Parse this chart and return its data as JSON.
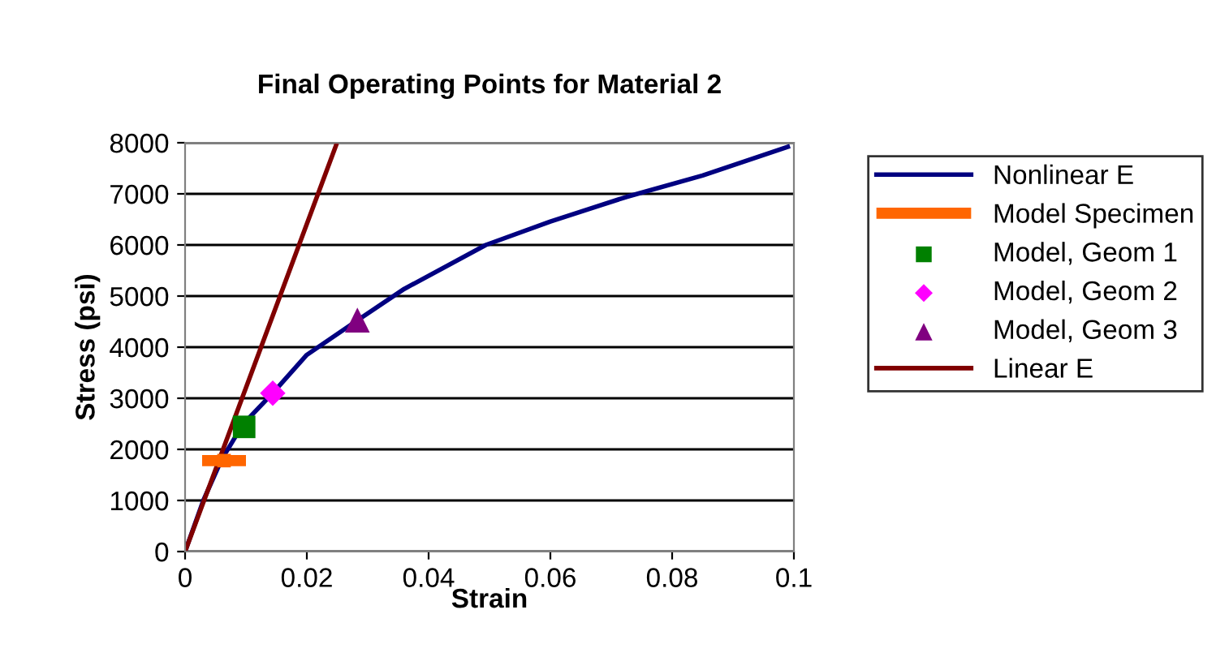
{
  "chart_data": {
    "type": "line",
    "title": "Final Operating Points for Material 2",
    "xlabel": "Strain",
    "ylabel": "Stress (psi)",
    "xlim": [
      0,
      0.1
    ],
    "xticks": [
      0,
      0.02,
      0.04,
      0.06,
      0.08,
      0.1
    ],
    "ylim": [
      0,
      8000
    ],
    "yticks": [
      0,
      1000,
      2000,
      3000,
      4000,
      5000,
      6000,
      7000,
      8000
    ],
    "grid": "y",
    "legend": "right",
    "series": [
      {
        "name": "Nonlinear E",
        "color": "#000080",
        "marker": "none",
        "x": [
          0,
          0.003,
          0.006,
          0.0095,
          0.0144,
          0.02,
          0.028,
          0.036,
          0.0494,
          0.06,
          0.0725,
          0.085,
          0.099
        ],
        "values": [
          0,
          1000,
          1800,
          2490,
          3100,
          3850,
          4500,
          5140,
          6000,
          6460,
          6940,
          7360,
          7920
        ]
      },
      {
        "name": "Model Specimen",
        "type": "scatter",
        "color": "#ff6600",
        "marker": "square",
        "x": [
          0.0064
        ],
        "values": [
          1780
        ],
        "xerrors": [
          0.0036
        ]
      },
      {
        "name": "Model, Geom 1",
        "type": "scatter",
        "color": "#008000",
        "marker": "square",
        "x": [
          0.0097
        ],
        "values": [
          2440
        ]
      },
      {
        "name": "Model, Geom 2",
        "type": "scatter",
        "color": "#ff00ff",
        "marker": "diamond",
        "x": [
          0.0144
        ],
        "values": [
          3100
        ]
      },
      {
        "name": "Model, Geom 3",
        "type": "scatter",
        "color": "#800080",
        "marker": "triangle",
        "x": [
          0.0283
        ],
        "values": [
          4530
        ]
      },
      {
        "name": "Linear E",
        "color": "#800000",
        "marker": "none",
        "x": [
          0,
          0.0248
        ],
        "values": [
          0,
          7950
        ]
      }
    ]
  }
}
